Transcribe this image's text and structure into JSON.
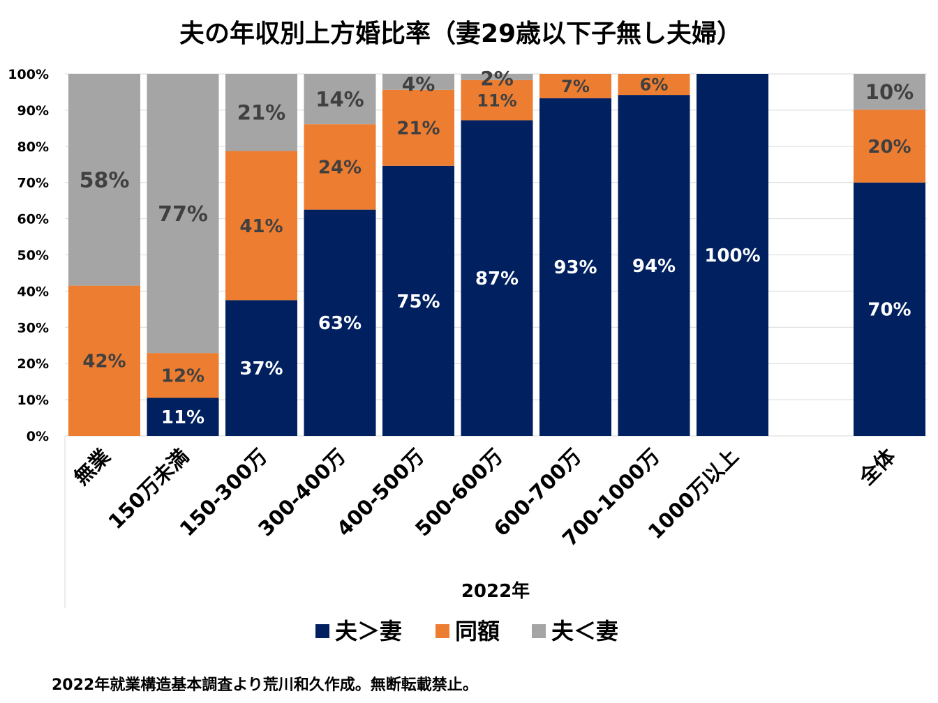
{
  "chart_data": {
    "type": "bar",
    "stacked": true,
    "percent": true,
    "title": "夫の年収別上方婚比率（妻29歳以下子無し夫婦）",
    "xlabel": "2022年",
    "ylabel": "",
    "ylim": [
      0,
      100
    ],
    "yticks": [
      "0%",
      "10%",
      "20%",
      "30%",
      "40%",
      "50%",
      "60%",
      "70%",
      "80%",
      "90%",
      "100%"
    ],
    "grid": true,
    "legend_position": "bottom",
    "categories": [
      "無業",
      "150万未満",
      "150-300万",
      "300-400万",
      "400-500万",
      "500-600万",
      "600-700万",
      "700-1000万",
      "1000万以上",
      "",
      "全体"
    ],
    "series": [
      {
        "name": "夫＞妻",
        "color": "#002060",
        "label_color": "#ffffff",
        "values": [
          0,
          10.5,
          37.5,
          62.5,
          74.6,
          87.2,
          93.3,
          94.2,
          100,
          null,
          70
        ],
        "labels": [
          "",
          "11%",
          "37%",
          "63%",
          "75%",
          "87%",
          "93%",
          "94%",
          "100%",
          "",
          "70%"
        ]
      },
      {
        "name": "同額",
        "color": "#ED7D31",
        "label_color": "#404040",
        "values": [
          41.5,
          12.4,
          41.2,
          23.6,
          21,
          11.1,
          6.7,
          5.8,
          0,
          null,
          20.1
        ],
        "labels": [
          "42%",
          "12%",
          "41%",
          "24%",
          "21%",
          "11%",
          "7%",
          "6%",
          "",
          "",
          "20%"
        ]
      },
      {
        "name": "夫＜妻",
        "color": "#A5A5A5",
        "label_color": "#404040",
        "values": [
          58.5,
          77.1,
          21.3,
          13.9,
          4.4,
          1.7,
          0,
          0,
          0,
          null,
          9.9
        ],
        "labels": [
          "58%",
          "77%",
          "21%",
          "14%",
          "4%",
          "2%",
          "",
          "",
          "",
          "",
          "10%"
        ]
      }
    ]
  },
  "footer": {
    "source_note": "2022年就業構造基本調査より荒川和久作成。無断転載禁止。"
  }
}
